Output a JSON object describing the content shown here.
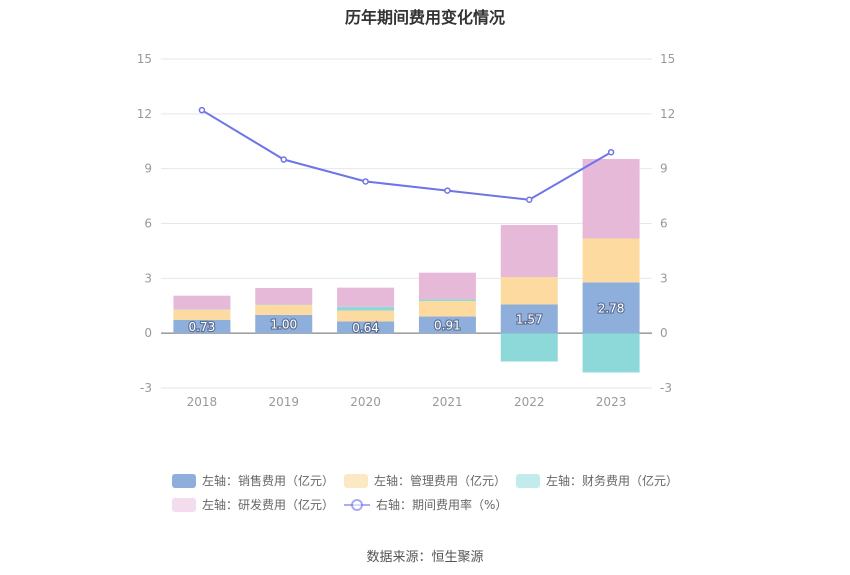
{
  "chart_data": {
    "type": "bar",
    "title": "历年期间费用变化情况",
    "categories": [
      "2018",
      "2019",
      "2020",
      "2021",
      "2022",
      "2023"
    ],
    "left_axis": {
      "min": -3,
      "max": 15,
      "ticks": [
        -3,
        0,
        3,
        6,
        9,
        12,
        15
      ]
    },
    "right_axis": {
      "min": -3,
      "max": 15,
      "ticks": [
        -3,
        0,
        3,
        6,
        9,
        12,
        15
      ]
    },
    "stacked": true,
    "series": [
      {
        "name": "左轴：销售费用（亿元）",
        "axis": "left",
        "kind": "bar",
        "color": "#8eaedb",
        "values": [
          0.73,
          1.0,
          0.64,
          0.91,
          1.57,
          2.78
        ],
        "data_labels": [
          "0.73",
          "1.00",
          "0.64",
          "0.91",
          "1.57",
          "2.78"
        ]
      },
      {
        "name": "左轴：管理费用（亿元）",
        "axis": "left",
        "kind": "bar",
        "color": "#fddba0",
        "values": [
          0.55,
          0.55,
          0.6,
          0.85,
          1.5,
          2.4
        ]
      },
      {
        "name": "左轴：财务费用（亿元）",
        "axis": "left",
        "kind": "bar",
        "color": "#8dd8d8",
        "values": [
          0.02,
          0.02,
          0.2,
          0.1,
          -1.55,
          -2.15
        ]
      },
      {
        "name": "左轴：研发费用（亿元）",
        "axis": "left",
        "kind": "bar",
        "color": "#e7b9d9",
        "values": [
          0.75,
          0.9,
          1.05,
          1.45,
          2.85,
          4.35
        ]
      },
      {
        "name": "右轴：期间费用率（%）",
        "axis": "right",
        "kind": "line",
        "color": "#6f74e8",
        "values": [
          12.2,
          9.5,
          8.3,
          7.8,
          7.3,
          9.9
        ]
      }
    ],
    "legend_position": "bottom",
    "grid": true
  },
  "source": "数据来源：恒生聚源"
}
